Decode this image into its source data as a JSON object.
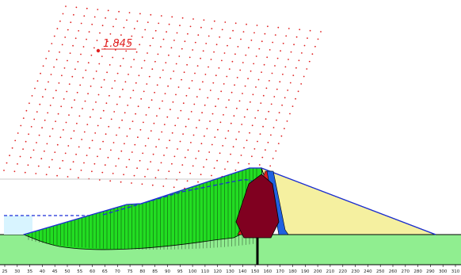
{
  "factor_of_safety": {
    "value": "1.845",
    "color": "#e02020"
  },
  "x_axis": {
    "ticks": [
      "25",
      "30",
      "35",
      "40",
      "45",
      "50",
      "55",
      "60",
      "65",
      "70",
      "75",
      "80",
      "85",
      "90",
      "95",
      "100",
      "110",
      "120",
      "130",
      "140",
      "150",
      "160",
      "170",
      "180",
      "190",
      "200",
      "210",
      "220",
      "230",
      "240",
      "250",
      "260",
      "270",
      "280",
      "290",
      "300",
      "310"
    ]
  },
  "colors": {
    "grid_points": "#e02020",
    "foundation": "#90ee90",
    "slip_mass": "#22dd22",
    "shell": "#f5f0a0",
    "core": "#800020",
    "reservoir": "#d8f4ff",
    "water_line": "#1c2fd6",
    "filter_red": "#e02020",
    "filter_blue": "#2060e0"
  },
  "icons": [
    "slip-center-grid",
    "slip-surface",
    "cutoff-wall"
  ]
}
